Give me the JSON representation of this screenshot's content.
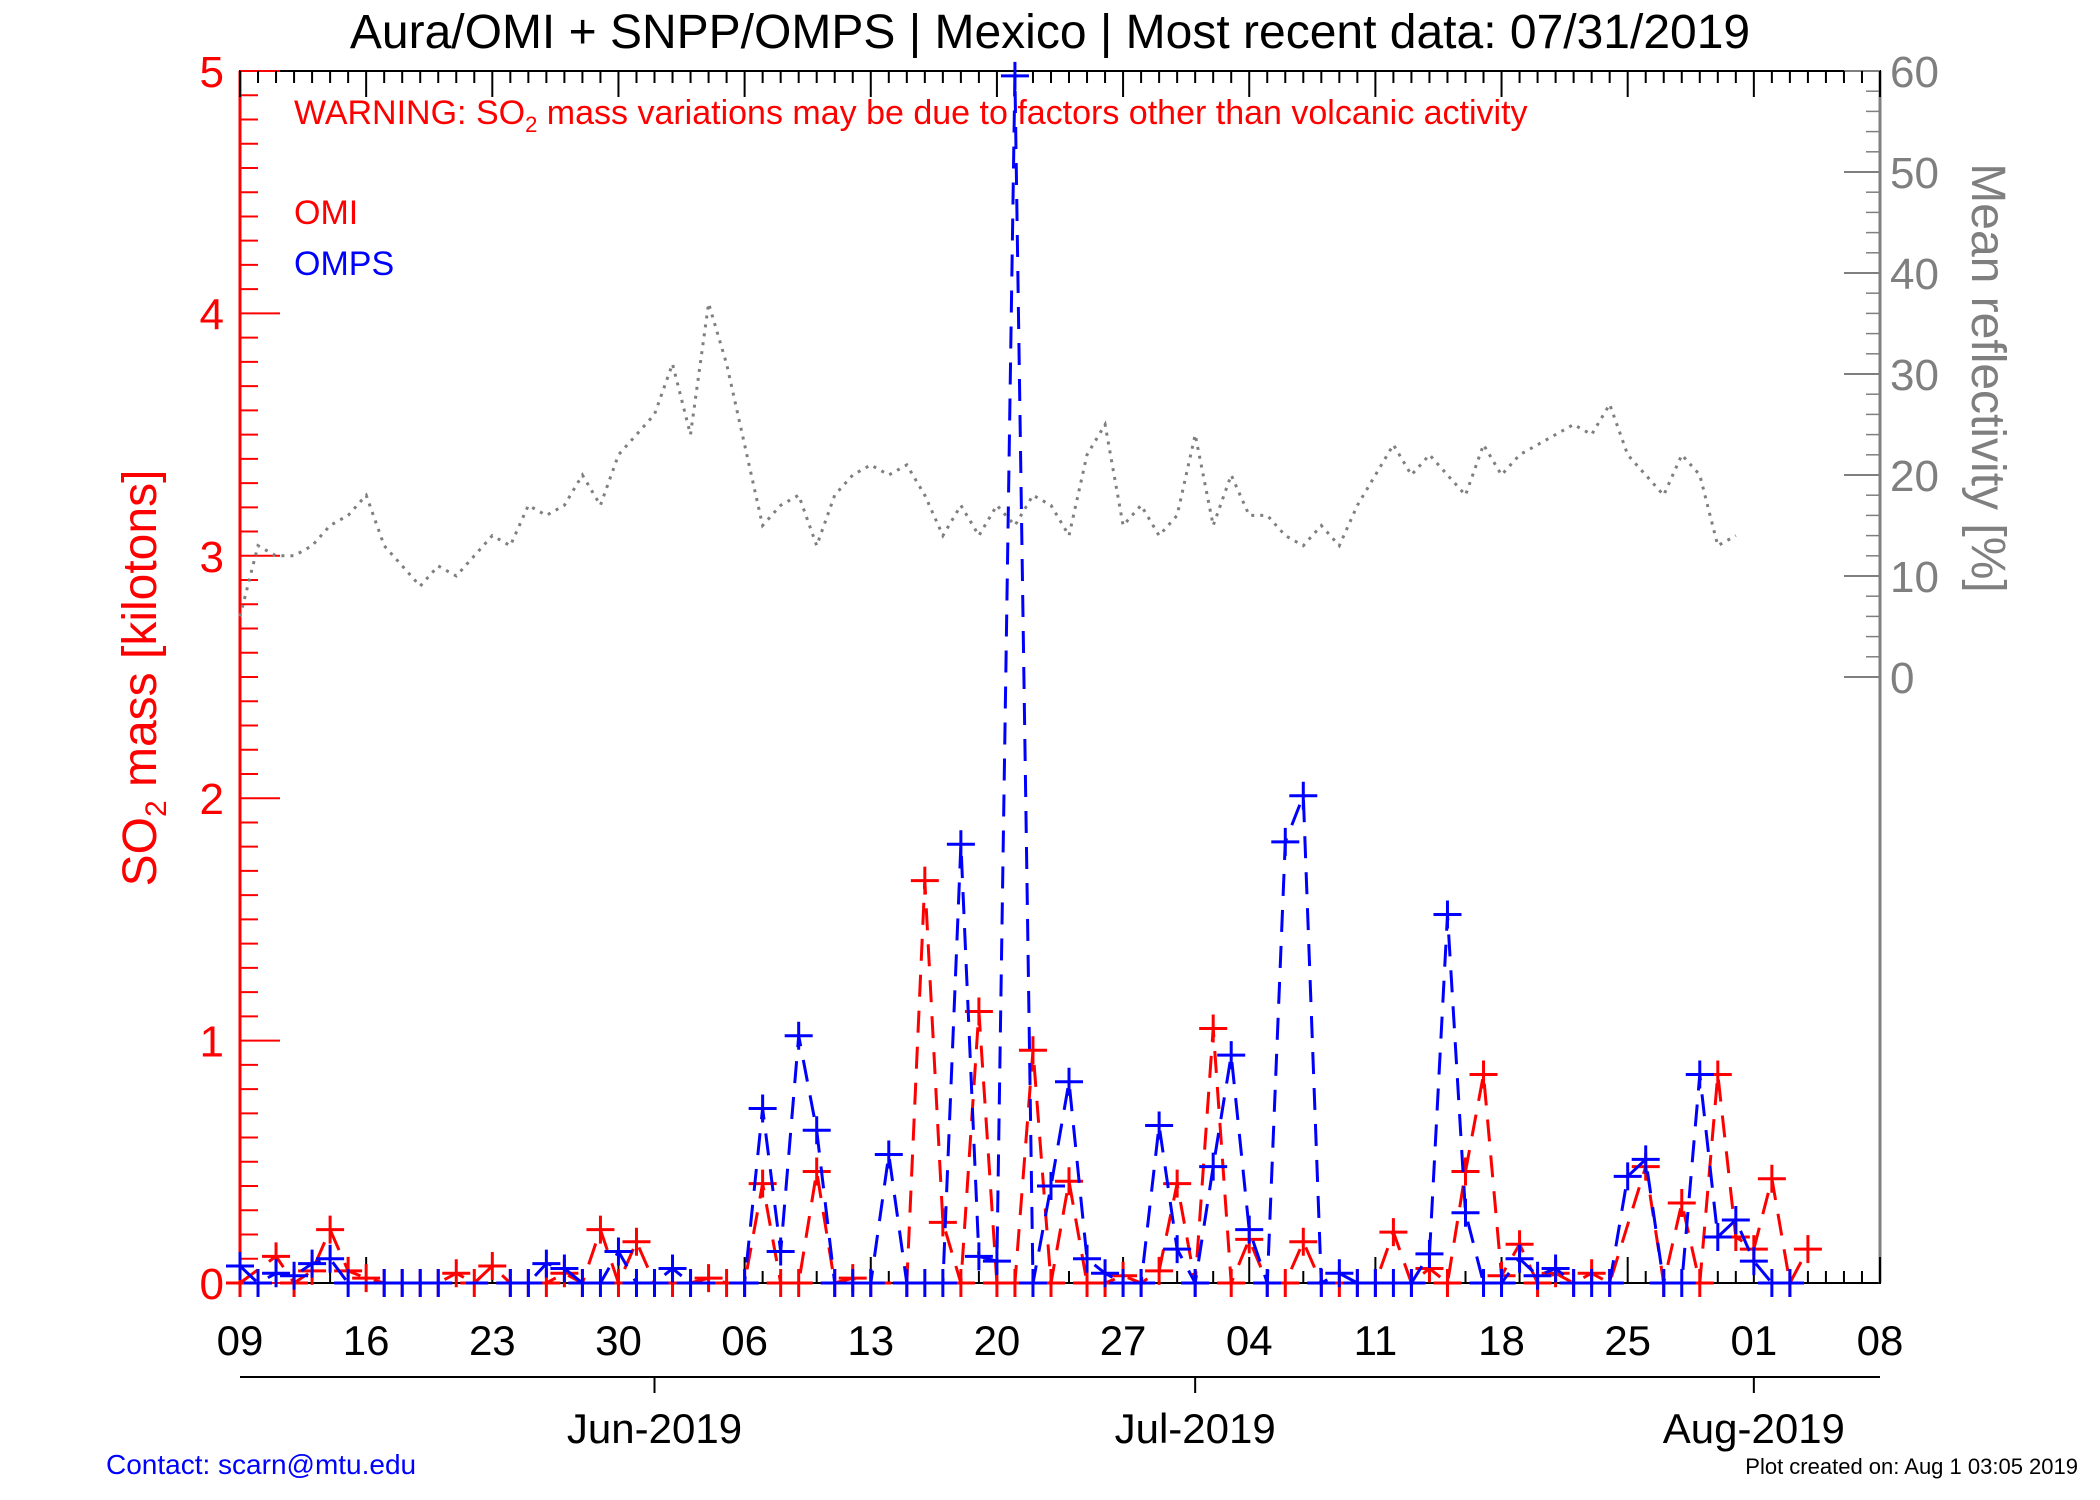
{
  "header": {
    "title": "Aura/OMI + SNPP/OMPS | Mexico | Most recent data: 07/31/2019"
  },
  "warning": {
    "prefix": "WARNING: SO",
    "subscript": "2",
    "suffix": " mass variations may be due to factors other than volcanic activity"
  },
  "legend": {
    "omi": "OMI",
    "omps": "OMPS"
  },
  "axes": {
    "left_label_prefix": "SO",
    "left_label_sub": "2",
    "left_label_suffix": " mass [kilotons]",
    "right_label": "Mean reflectivity [%]",
    "month_labels": [
      "Jun-2019",
      "Jul-2019",
      "Aug-2019"
    ]
  },
  "footer": {
    "contact": "Contact: scarn@mtu.edu",
    "created": "Plot created on: Aug  1 03:05 2019"
  },
  "colors": {
    "omi": "#ff0000",
    "omps": "#0000ff",
    "reflectivity": "#7f7f7f",
    "axis_left": "#ff0000",
    "axis_right": "#7f7f7f"
  },
  "chart_data": {
    "type": "line",
    "x_unit": "date",
    "xlim": [
      "2019-05-09",
      "2019-08-08"
    ],
    "x_ticks": [
      "2019-05-09",
      "2019-05-16",
      "2019-05-23",
      "2019-05-30",
      "2019-06-06",
      "2019-06-13",
      "2019-06-20",
      "2019-06-27",
      "2019-07-04",
      "2019-07-11",
      "2019-07-18",
      "2019-07-25",
      "2019-08-01",
      "2019-08-08"
    ],
    "x_tick_labels": [
      "09",
      "16",
      "23",
      "30",
      "06",
      "13",
      "20",
      "27",
      "04",
      "11",
      "18",
      "25",
      "01",
      "08"
    ],
    "month_ticks": [
      "2019-06-01",
      "2019-07-01",
      "2019-08-01"
    ],
    "y_left": {
      "ylim": [
        0,
        5
      ],
      "ticks": [
        0,
        1,
        2,
        3,
        4,
        5
      ],
      "label": "SO2 mass [kilotons]"
    },
    "y_right": {
      "ylim": [
        -60,
        60
      ],
      "ticks": [
        0,
        10,
        20,
        30,
        40,
        50,
        60
      ],
      "label": "Mean reflectivity [%]"
    },
    "series": [
      {
        "name": "OMI",
        "axis": "left",
        "style": "dashed-plus",
        "points": [
          [
            "2019-05-09",
            0.0
          ],
          [
            "2019-05-11",
            0.11
          ],
          [
            "2019-05-12",
            0.0
          ],
          [
            "2019-05-13",
            0.05
          ],
          [
            "2019-05-14",
            0.22
          ],
          [
            "2019-05-15",
            0.05
          ],
          [
            "2019-05-16",
            0.02
          ],
          [
            "2019-05-17",
            0.0
          ],
          [
            "2019-05-18",
            0.0
          ],
          [
            "2019-05-19",
            0.0
          ],
          [
            "2019-05-20",
            0.0
          ],
          [
            "2019-05-21",
            0.04
          ],
          [
            "2019-05-22",
            0.0
          ],
          [
            "2019-05-23",
            0.07
          ],
          [
            "2019-05-24",
            0.0
          ],
          [
            "2019-05-25",
            0.0
          ],
          [
            "2019-05-26",
            0.0
          ],
          [
            "2019-05-27",
            0.04
          ],
          [
            "2019-05-28",
            0.0
          ],
          [
            "2019-05-29",
            0.22
          ],
          [
            "2019-05-30",
            0.0
          ],
          [
            "2019-05-31",
            0.17
          ],
          [
            "2019-06-01",
            0.0
          ],
          [
            "2019-06-02",
            0.0
          ],
          [
            "2019-06-03",
            0.0
          ],
          [
            "2019-06-04",
            0.02
          ],
          [
            "2019-06-05",
            0.0
          ],
          [
            "2019-06-06",
            0.0
          ],
          [
            "2019-06-07",
            0.41
          ],
          [
            "2019-06-08",
            0.0
          ],
          [
            "2019-06-09",
            0.0
          ],
          [
            "2019-06-10",
            0.46
          ],
          [
            "2019-06-11",
            0.0
          ],
          [
            "2019-06-12",
            0.02
          ],
          [
            "2019-06-13",
            0.0
          ],
          [
            "2019-06-15",
            0.0
          ],
          [
            "2019-06-16",
            1.66
          ],
          [
            "2019-06-17",
            0.25
          ],
          [
            "2019-06-18",
            0.0
          ],
          [
            "2019-06-19",
            1.12
          ],
          [
            "2019-06-20",
            0.0
          ],
          [
            "2019-06-21",
            0.0
          ],
          [
            "2019-06-22",
            0.96
          ],
          [
            "2019-06-23",
            0.0
          ],
          [
            "2019-06-24",
            0.42
          ],
          [
            "2019-06-25",
            0.0
          ],
          [
            "2019-06-26",
            0.0
          ],
          [
            "2019-06-27",
            0.03
          ],
          [
            "2019-06-28",
            0.0
          ],
          [
            "2019-06-29",
            0.05
          ],
          [
            "2019-06-30",
            0.41
          ],
          [
            "2019-07-01",
            0.0
          ],
          [
            "2019-07-02",
            1.05
          ],
          [
            "2019-07-03",
            0.0
          ],
          [
            "2019-07-04",
            0.18
          ],
          [
            "2019-07-05",
            0.0
          ],
          [
            "2019-07-06",
            0.0
          ],
          [
            "2019-07-07",
            0.17
          ],
          [
            "2019-07-08",
            0.0
          ],
          [
            "2019-07-09",
            0.0
          ],
          [
            "2019-07-10",
            0.0
          ],
          [
            "2019-07-11",
            0.0
          ],
          [
            "2019-07-12",
            0.21
          ],
          [
            "2019-07-13",
            0.0
          ],
          [
            "2019-07-14",
            0.06
          ],
          [
            "2019-07-15",
            0.0
          ],
          [
            "2019-07-16",
            0.46
          ],
          [
            "2019-07-17",
            0.86
          ],
          [
            "2019-07-18",
            0.03
          ],
          [
            "2019-07-19",
            0.16
          ],
          [
            "2019-07-20",
            0.0
          ],
          [
            "2019-07-21",
            0.04
          ],
          [
            "2019-07-22",
            0.0
          ],
          [
            "2019-07-23",
            0.04
          ],
          [
            "2019-07-24",
            0.0
          ],
          [
            "2019-07-26",
            0.48
          ],
          [
            "2019-07-27",
            0.0
          ],
          [
            "2019-07-28",
            0.33
          ],
          [
            "2019-07-29",
            0.0
          ],
          [
            "2019-07-30",
            0.86
          ],
          [
            "2019-07-31",
            0.19
          ],
          [
            "2019-08-01",
            0.14
          ],
          [
            "2019-08-02",
            0.43
          ],
          [
            "2019-08-03",
            0.0
          ],
          [
            "2019-08-04",
            0.14
          ]
        ]
      },
      {
        "name": "OMPS",
        "axis": "left",
        "style": "dashed-plus",
        "points": [
          [
            "2019-05-09",
            0.07
          ],
          [
            "2019-05-10",
            0.0
          ],
          [
            "2019-05-11",
            0.04
          ],
          [
            "2019-05-12",
            0.03
          ],
          [
            "2019-05-13",
            0.08
          ],
          [
            "2019-05-14",
            0.1
          ],
          [
            "2019-05-15",
            0.0
          ],
          [
            "2019-05-17",
            0.0
          ],
          [
            "2019-05-18",
            0.0
          ],
          [
            "2019-05-19",
            0.0
          ],
          [
            "2019-05-20",
            0.0
          ],
          [
            "2019-05-24",
            0.0
          ],
          [
            "2019-05-25",
            0.0
          ],
          [
            "2019-05-26",
            0.08
          ],
          [
            "2019-05-27",
            0.06
          ],
          [
            "2019-05-28",
            0.0
          ],
          [
            "2019-05-29",
            0.0
          ],
          [
            "2019-05-30",
            0.13
          ],
          [
            "2019-05-31",
            0.0
          ],
          [
            "2019-06-01",
            0.0
          ],
          [
            "2019-06-02",
            0.06
          ],
          [
            "2019-06-03",
            0.0
          ],
          [
            "2019-06-06",
            0.0
          ],
          [
            "2019-06-07",
            0.72
          ],
          [
            "2019-06-08",
            0.13
          ],
          [
            "2019-06-09",
            1.02
          ],
          [
            "2019-06-10",
            0.63
          ],
          [
            "2019-06-11",
            0.0
          ],
          [
            "2019-06-12",
            0.0
          ],
          [
            "2019-06-13",
            0.0
          ],
          [
            "2019-06-14",
            0.53
          ],
          [
            "2019-06-15",
            0.0
          ],
          [
            "2019-06-16",
            0.0
          ],
          [
            "2019-06-17",
            0.0
          ],
          [
            "2019-06-18",
            1.81
          ],
          [
            "2019-06-19",
            0.11
          ],
          [
            "2019-06-20",
            0.09
          ],
          [
            "2019-06-21",
            4.98
          ],
          [
            "2019-06-22",
            0.0
          ],
          [
            "2019-06-23",
            0.4
          ],
          [
            "2019-06-24",
            0.83
          ],
          [
            "2019-06-25",
            0.1
          ],
          [
            "2019-06-26",
            0.04
          ],
          [
            "2019-06-27",
            0.0
          ],
          [
            "2019-06-28",
            0.0
          ],
          [
            "2019-06-29",
            0.65
          ],
          [
            "2019-06-30",
            0.14
          ],
          [
            "2019-07-01",
            0.0
          ],
          [
            "2019-07-02",
            0.48
          ],
          [
            "2019-07-03",
            0.94
          ],
          [
            "2019-07-04",
            0.22
          ],
          [
            "2019-07-05",
            0.0
          ],
          [
            "2019-07-06",
            1.82
          ],
          [
            "2019-07-07",
            2.01
          ],
          [
            "2019-07-08",
            0.0
          ],
          [
            "2019-07-09",
            0.04
          ],
          [
            "2019-07-10",
            0.0
          ],
          [
            "2019-07-11",
            0.0
          ],
          [
            "2019-07-12",
            0.0
          ],
          [
            "2019-07-13",
            0.0
          ],
          [
            "2019-07-14",
            0.12
          ],
          [
            "2019-07-15",
            1.52
          ],
          [
            "2019-07-16",
            0.29
          ],
          [
            "2019-07-17",
            0.0
          ],
          [
            "2019-07-18",
            0.0
          ],
          [
            "2019-07-19",
            0.1
          ],
          [
            "2019-07-20",
            0.03
          ],
          [
            "2019-07-21",
            0.06
          ],
          [
            "2019-07-22",
            0.0
          ],
          [
            "2019-07-23",
            0.0
          ],
          [
            "2019-07-24",
            0.0
          ],
          [
            "2019-07-25",
            0.44
          ],
          [
            "2019-07-26",
            0.51
          ],
          [
            "2019-07-27",
            0.0
          ],
          [
            "2019-07-28",
            0.0
          ],
          [
            "2019-07-29",
            0.86
          ],
          [
            "2019-07-30",
            0.19
          ],
          [
            "2019-07-31",
            0.26
          ],
          [
            "2019-08-01",
            0.09
          ],
          [
            "2019-08-02",
            0.0
          ],
          [
            "2019-08-03",
            0.0
          ]
        ]
      },
      {
        "name": "",
        "axis": "right",
        "style": "dotted",
        "points": [
          [
            "2019-05-09",
            6
          ],
          [
            "2019-05-10",
            13
          ],
          [
            "2019-05-11",
            12
          ],
          [
            "2019-05-12",
            12
          ],
          [
            "2019-05-13",
            13
          ],
          [
            "2019-05-14",
            15
          ],
          [
            "2019-05-15",
            16
          ],
          [
            "2019-05-16",
            18
          ],
          [
            "2019-05-17",
            13
          ],
          [
            "2019-05-18",
            11
          ],
          [
            "2019-05-19",
            9
          ],
          [
            "2019-05-20",
            11
          ],
          [
            "2019-05-21",
            10
          ],
          [
            "2019-05-22",
            12
          ],
          [
            "2019-05-23",
            14
          ],
          [
            "2019-05-24",
            13
          ],
          [
            "2019-05-25",
            17
          ],
          [
            "2019-05-26",
            16
          ],
          [
            "2019-05-27",
            17
          ],
          [
            "2019-05-28",
            20
          ],
          [
            "2019-05-29",
            17
          ],
          [
            "2019-05-30",
            22
          ],
          [
            "2019-05-31",
            24
          ],
          [
            "2019-06-01",
            26
          ],
          [
            "2019-06-02",
            31
          ],
          [
            "2019-06-03",
            24
          ],
          [
            "2019-06-04",
            37
          ],
          [
            "2019-06-05",
            31
          ],
          [
            "2019-06-06",
            23
          ],
          [
            "2019-06-07",
            15
          ],
          [
            "2019-06-08",
            17
          ],
          [
            "2019-06-09",
            18
          ],
          [
            "2019-06-10",
            13
          ],
          [
            "2019-06-11",
            18
          ],
          [
            "2019-06-12",
            20
          ],
          [
            "2019-06-13",
            21
          ],
          [
            "2019-06-14",
            20
          ],
          [
            "2019-06-15",
            21
          ],
          [
            "2019-06-16",
            18
          ],
          [
            "2019-06-17",
            14
          ],
          [
            "2019-06-18",
            17
          ],
          [
            "2019-06-19",
            14
          ],
          [
            "2019-06-20",
            17
          ],
          [
            "2019-06-21",
            15
          ],
          [
            "2019-06-22",
            18
          ],
          [
            "2019-06-23",
            17
          ],
          [
            "2019-06-24",
            14
          ],
          [
            "2019-06-25",
            22
          ],
          [
            "2019-06-26",
            25
          ],
          [
            "2019-06-27",
            15
          ],
          [
            "2019-06-28",
            17
          ],
          [
            "2019-06-29",
            14
          ],
          [
            "2019-06-30",
            16
          ],
          [
            "2019-07-01",
            24
          ],
          [
            "2019-07-02",
            15
          ],
          [
            "2019-07-03",
            20
          ],
          [
            "2019-07-04",
            16
          ],
          [
            "2019-07-05",
            16
          ],
          [
            "2019-07-06",
            14
          ],
          [
            "2019-07-07",
            13
          ],
          [
            "2019-07-08",
            15
          ],
          [
            "2019-07-09",
            13
          ],
          [
            "2019-07-10",
            17
          ],
          [
            "2019-07-11",
            20
          ],
          [
            "2019-07-12",
            23
          ],
          [
            "2019-07-13",
            20
          ],
          [
            "2019-07-14",
            22
          ],
          [
            "2019-07-15",
            20
          ],
          [
            "2019-07-16",
            18
          ],
          [
            "2019-07-17",
            23
          ],
          [
            "2019-07-18",
            20
          ],
          [
            "2019-07-19",
            22
          ],
          [
            "2019-07-20",
            23
          ],
          [
            "2019-07-21",
            24
          ],
          [
            "2019-07-22",
            25
          ],
          [
            "2019-07-23",
            24
          ],
          [
            "2019-07-24",
            27
          ],
          [
            "2019-07-25",
            22
          ],
          [
            "2019-07-26",
            20
          ],
          [
            "2019-07-27",
            18
          ],
          [
            "2019-07-28",
            22
          ],
          [
            "2019-07-29",
            20
          ],
          [
            "2019-07-30",
            13
          ],
          [
            "2019-07-31",
            14
          ]
        ]
      }
    ]
  }
}
